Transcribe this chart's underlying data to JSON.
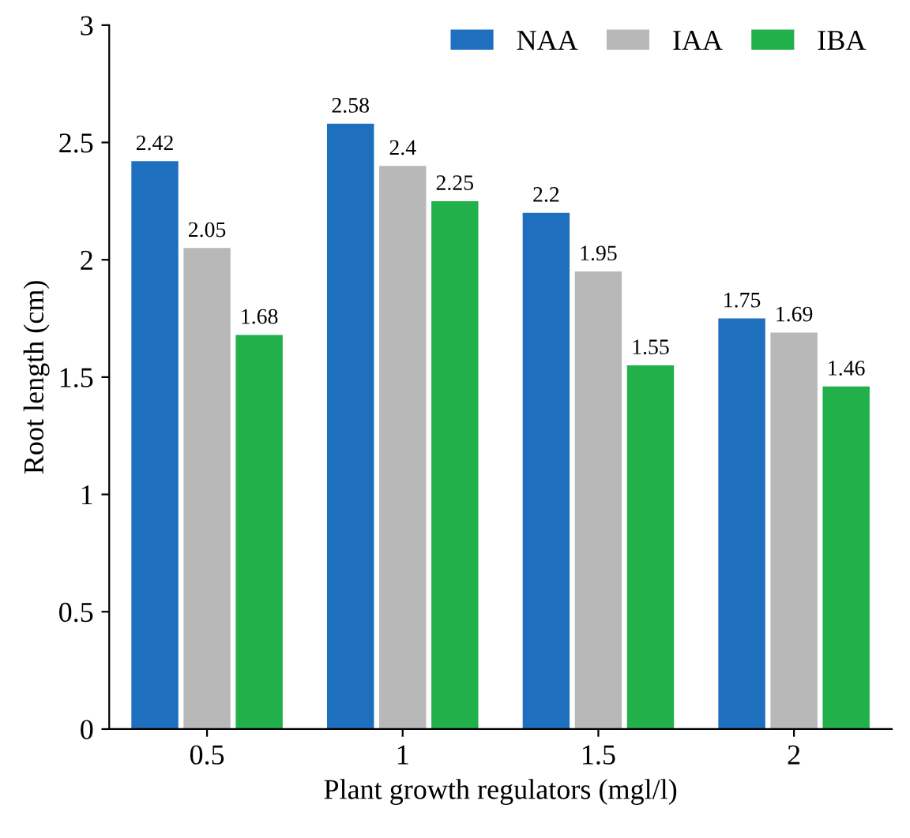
{
  "chart_data": {
    "type": "bar",
    "xlabel": "Plant growth regulators (mgl/l)",
    "ylabel": "Root length (cm)",
    "categories": [
      "0.5",
      "1",
      "1.5",
      "2"
    ],
    "series": [
      {
        "name": "NAA",
        "color": "#1f6fbf",
        "values": [
          2.42,
          2.58,
          2.2,
          1.75
        ]
      },
      {
        "name": "IAA",
        "color": "#b8b8b8",
        "values": [
          2.05,
          2.4,
          1.95,
          1.69
        ]
      },
      {
        "name": "IBA",
        "color": "#22b04a",
        "values": [
          1.68,
          2.25,
          1.55,
          1.46
        ]
      }
    ],
    "ylim": [
      0,
      3
    ],
    "yticks": [
      0,
      0.5,
      1,
      1.5,
      2,
      2.5,
      3
    ],
    "grid": false,
    "legend": "top right",
    "data_labels": true
  }
}
